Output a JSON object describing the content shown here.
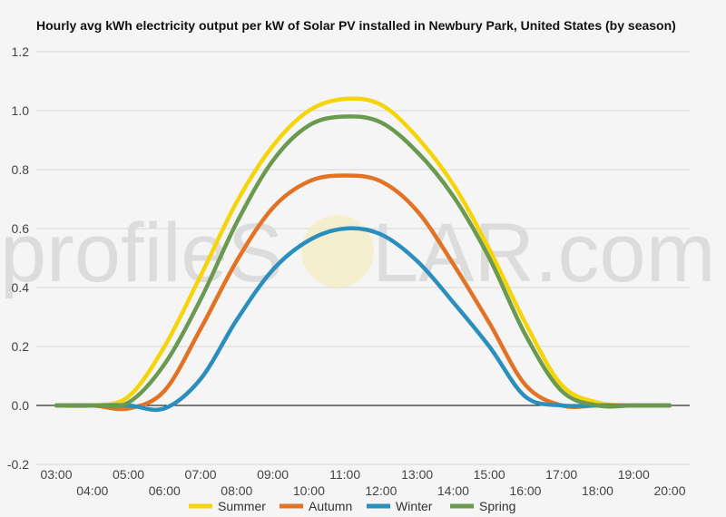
{
  "chart_data": {
    "type": "line",
    "title": "Hourly avg kWh electricity output per kW of Solar PV installed in Newbury Park, United States (by season)",
    "watermark": {
      "left": "profileS",
      "right": "LAR.com"
    },
    "x": [
      "03:00",
      "04:00",
      "05:00",
      "06:00",
      "07:00",
      "08:00",
      "09:00",
      "10:00",
      "11:00",
      "12:00",
      "13:00",
      "14:00",
      "15:00",
      "16:00",
      "17:00",
      "18:00",
      "19:00",
      "20:00"
    ],
    "ylim": [
      -0.2,
      1.2
    ],
    "yticks": [
      "-0.2",
      "0.0",
      "0.2",
      "0.4",
      "0.6",
      "0.8",
      "1.0",
      "1.2"
    ],
    "ytick_values": [
      -0.2,
      0.0,
      0.2,
      0.4,
      0.6,
      0.8,
      1.0,
      1.2
    ],
    "grid": true,
    "legend_position": "bottom",
    "series": [
      {
        "name": "Summer",
        "color": "#f5d40a",
        "values": [
          0,
          0,
          0.03,
          0.2,
          0.44,
          0.69,
          0.88,
          1.0,
          1.04,
          1.02,
          0.91,
          0.75,
          0.53,
          0.28,
          0.07,
          0.01,
          0,
          0
        ]
      },
      {
        "name": "Autumn",
        "color": "#e27224",
        "values": [
          0,
          0,
          -0.01,
          0.05,
          0.26,
          0.49,
          0.67,
          0.76,
          0.78,
          0.76,
          0.66,
          0.48,
          0.28,
          0.07,
          0,
          0,
          0,
          0
        ]
      },
      {
        "name": "Winter",
        "color": "#2a8fbd",
        "values": [
          0,
          0,
          0,
          -0.01,
          0.09,
          0.29,
          0.46,
          0.56,
          0.6,
          0.58,
          0.49,
          0.35,
          0.2,
          0.03,
          0,
          0,
          0,
          0
        ]
      },
      {
        "name": "Spring",
        "color": "#6a9a4f",
        "values": [
          0,
          0,
          0.01,
          0.14,
          0.36,
          0.62,
          0.83,
          0.95,
          0.98,
          0.96,
          0.86,
          0.71,
          0.5,
          0.24,
          0.05,
          0,
          0,
          0
        ]
      }
    ]
  }
}
